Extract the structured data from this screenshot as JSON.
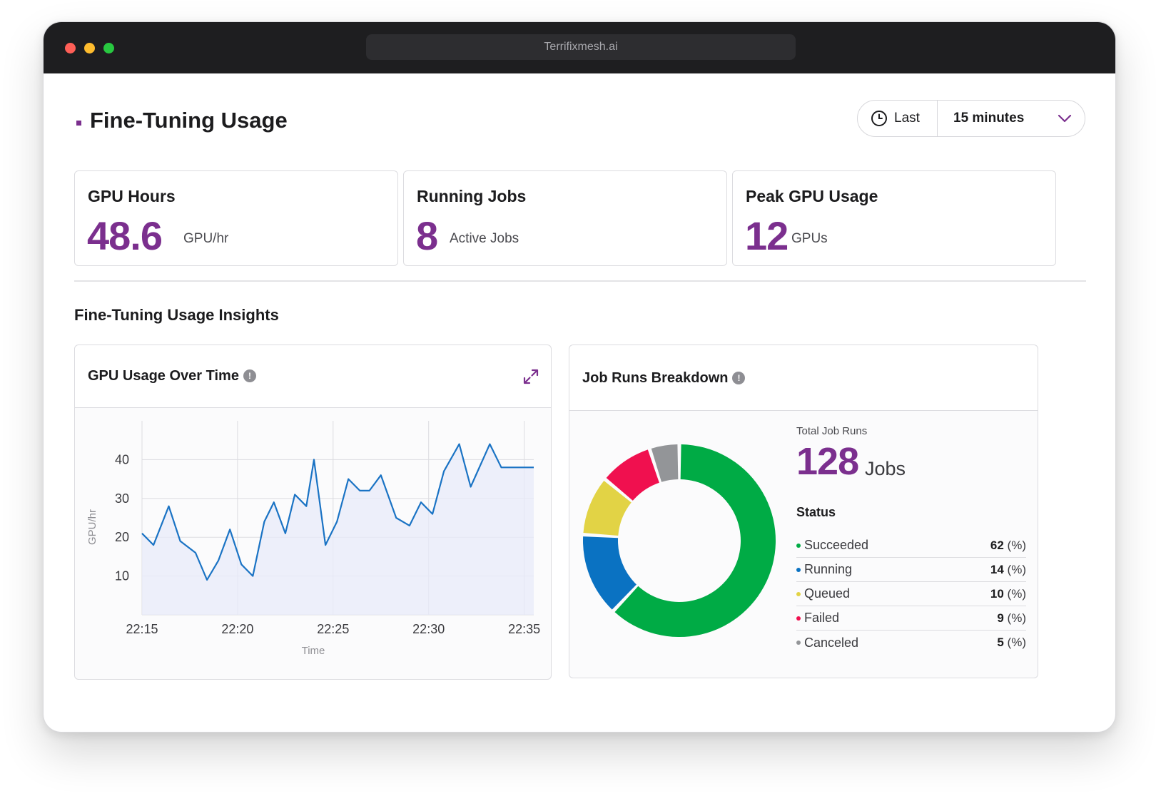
{
  "window": {
    "url": "Terrifixmesh.ai"
  },
  "page": {
    "title": "Fine-Tuning Usage"
  },
  "time_picker": {
    "prefix": "Last",
    "value": "15 minutes"
  },
  "stats": [
    {
      "label": "GPU Hours",
      "value": "48.6",
      "unit": "GPU/hr"
    },
    {
      "label": "Running Jobs",
      "value": "8",
      "unit": "Active Jobs"
    },
    {
      "label": "Peak GPU Usage",
      "value": "12",
      "unit": "GPUs"
    }
  ],
  "insights": {
    "title": "Fine-Tuning Usage Insights"
  },
  "gpu_panel": {
    "title": "GPU Usage Over Time",
    "info": "!"
  },
  "jobs_panel": {
    "title": "Job Runs Breakdown",
    "info": "!",
    "total_label": "Total Job Runs",
    "total_value": "128",
    "total_unit": "Jobs",
    "status_title": "Status",
    "statuses": [
      {
        "name": "Succeeded",
        "value": "62",
        "suffix": "(%)",
        "color": "#00ab45"
      },
      {
        "name": "Running",
        "value": "14",
        "suffix": "(%)",
        "color": "#0a72c2"
      },
      {
        "name": "Queued",
        "value": "10",
        "suffix": "(%)",
        "color": "#e2d345"
      },
      {
        "name": "Failed",
        "value": "9",
        "suffix": "(%)",
        "color": "#f0104f"
      },
      {
        "name": "Canceled",
        "value": "5",
        "suffix": "(%)",
        "color": "#939598"
      }
    ]
  },
  "colors": {
    "accent": "#7b2f8e",
    "line": "#1a73c4"
  },
  "chart_data": [
    {
      "type": "line",
      "title": "GPU Usage Over Time",
      "xlabel": "Time",
      "ylabel": "GPU/hr",
      "x_ticks": [
        "22:15",
        "22:20",
        "22:25",
        "22:30",
        "22:35"
      ],
      "y_ticks": [
        10,
        20,
        30,
        40
      ],
      "xlim": [
        0,
        20.5
      ],
      "ylim": [
        0,
        50
      ],
      "grid": true,
      "series": [
        {
          "x": [
            0,
            0.6,
            1.4,
            2.0,
            2.8,
            3.4,
            4.0,
            4.6,
            5.2,
            5.8,
            6.4,
            6.9,
            7.5,
            8.0,
            8.6,
            9.0,
            9.6,
            10.2,
            10.8,
            11.4,
            11.9,
            12.5,
            13.3,
            14.0,
            14.6,
            15.2,
            15.8,
            16.6,
            17.2,
            18.2,
            18.8,
            19.5,
            20.0,
            20.5
          ],
          "y": [
            21,
            18,
            28,
            19,
            16,
            9,
            14,
            22,
            13,
            10,
            24,
            29,
            21,
            31,
            28,
            40,
            18,
            24,
            35,
            32,
            32,
            36,
            25,
            23,
            29,
            26,
            37,
            44,
            33,
            44,
            38,
            38,
            38,
            38
          ]
        }
      ]
    },
    {
      "type": "pie",
      "title": "Job Runs Breakdown",
      "categories": [
        "Succeeded",
        "Running",
        "Queued",
        "Failed",
        "Canceled"
      ],
      "values": [
        62,
        14,
        10,
        9,
        5
      ]
    }
  ]
}
